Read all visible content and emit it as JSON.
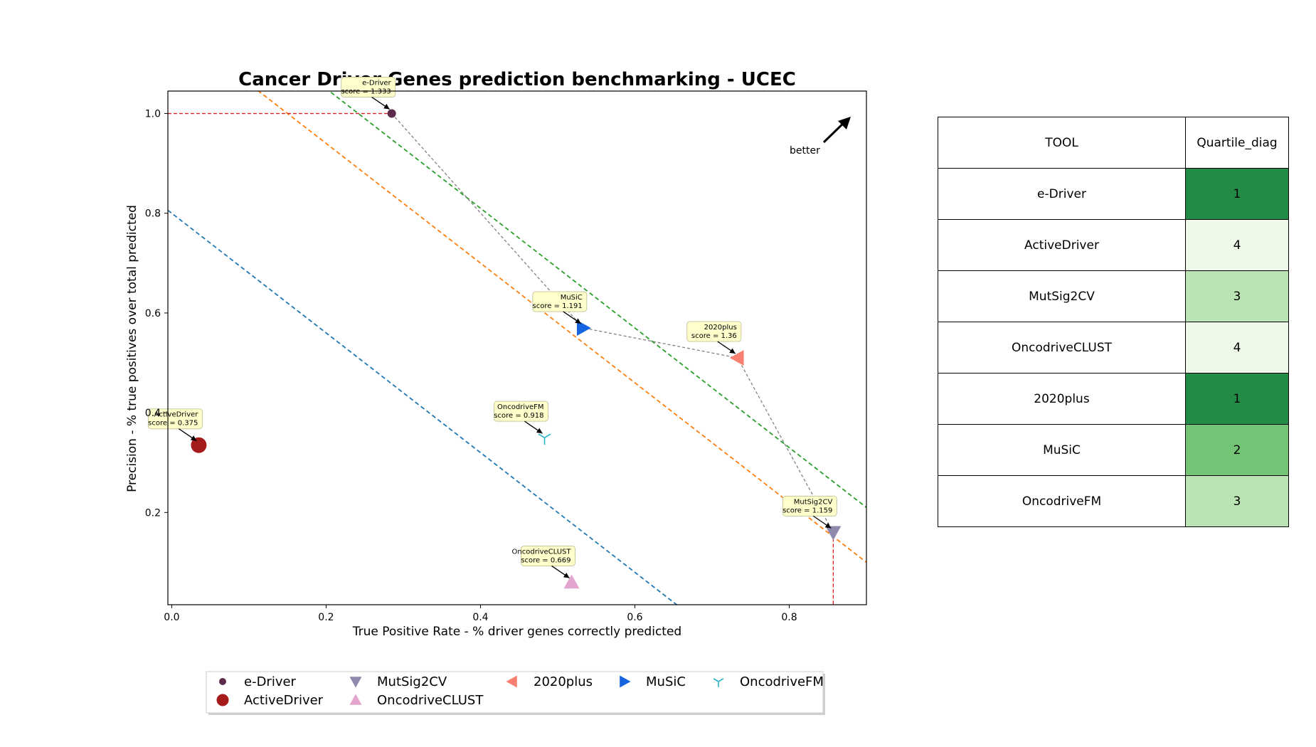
{
  "chart_data": {
    "type": "scatter",
    "title": "Cancer Driver Genes prediction benchmarking - UCEC",
    "xlabel": "True Positive Rate - % driver genes correctly predicted",
    "ylabel": "Precision - % true positives over total predicted",
    "xlim": [
      -0.005,
      0.9
    ],
    "ylim": [
      0.015,
      1.045
    ],
    "xticks": [
      0.0,
      0.2,
      0.4,
      0.6,
      0.8
    ],
    "xtick_labels": [
      "0.0",
      "0.2",
      "0.4",
      "0.6",
      "0.8"
    ],
    "yticks": [
      0.2,
      0.4,
      0.6,
      0.8,
      1.0
    ],
    "ytick_labels": [
      "0.2",
      "0.4",
      "0.6",
      "0.8",
      "1.0"
    ],
    "grid": false,
    "legend_placement": "bottom-center",
    "series": [
      {
        "name": "e-Driver",
        "x": 0.285,
        "y": 1.0,
        "score": "score = 1.333",
        "marker": "circle-small",
        "color": "#5b2a4c",
        "label_shown": "e-Driver"
      },
      {
        "name": "ActiveDriver",
        "x": 0.035,
        "y": 0.335,
        "score": "score = 0.375",
        "marker": "circle-large",
        "color": "#a51a1a",
        "label_shown": "ActiveDriver"
      },
      {
        "name": "MutSig2CV",
        "x": 0.857,
        "y": 0.16,
        "score": "score = 1.159",
        "marker": "triangle-down",
        "color": "#8e8aab",
        "label_shown": "MutSig2CV"
      },
      {
        "name": "OncodriveCLUST",
        "x": 0.518,
        "y": 0.06,
        "score": "score = 0.669",
        "marker": "triangle-up",
        "color": "#e2a5d0",
        "label_shown": "OncodriveCLUST"
      },
      {
        "name": "2020plus",
        "x": 0.733,
        "y": 0.51,
        "score": "score = 1.36",
        "marker": "triangle-left",
        "color": "#f88070",
        "label_shown": "2020plus"
      },
      {
        "name": "MuSiC",
        "x": 0.533,
        "y": 0.57,
        "score": "score = 1.191",
        "marker": "triangle-right",
        "color": "#1664e0",
        "label_shown": "MuSiC"
      },
      {
        "name": "OncodriveFM",
        "x": 0.483,
        "y": 0.35,
        "score": "score = 0.918",
        "marker": "tri-down",
        "color": "#2ab3c8",
        "label_shown": "OncodriveFM"
      }
    ],
    "pareto_frontier": [
      "e-Driver",
      "MuSiC",
      "2020plus",
      "MutSig2CV"
    ],
    "frontier_color": "#808080",
    "best_reference_lines": [
      {
        "axis": "y",
        "value": 1.0,
        "x_to": 0.285,
        "color": "#e02020"
      },
      {
        "axis": "x",
        "value": 0.857,
        "y_to": 0.16,
        "color": "#e02020"
      }
    ],
    "iso_score_lines": [
      {
        "slope": -1.2,
        "intercept": 0.8,
        "color": "#1f77b4"
      },
      {
        "slope": -1.2,
        "intercept": 1.18,
        "color": "#ff7f0e"
      },
      {
        "slope": -1.2,
        "intercept": 1.29,
        "color": "#2ca02c"
      }
    ],
    "annotation": "better"
  },
  "legend": {
    "items": [
      "e-Driver",
      "ActiveDriver",
      "MutSig2CV",
      "OncodriveCLUST",
      "2020plus",
      "MuSiC",
      "OncodriveFM"
    ]
  },
  "table": {
    "headers": [
      "TOOL",
      "Quartile_diag"
    ],
    "rows": [
      {
        "tool": "e-Driver",
        "quartile": "1",
        "color": "#238b45",
        "text_color": "#000000"
      },
      {
        "tool": "ActiveDriver",
        "quartile": "4",
        "color": "#edf8e9",
        "text_color": "#000000"
      },
      {
        "tool": "MutSig2CV",
        "quartile": "3",
        "color": "#bae4b3",
        "text_color": "#000000"
      },
      {
        "tool": "OncodriveCLUST",
        "quartile": "4",
        "color": "#edf8e9",
        "text_color": "#000000"
      },
      {
        "tool": "2020plus",
        "quartile": "1",
        "color": "#238b45",
        "text_color": "#000000"
      },
      {
        "tool": "MuSiC",
        "quartile": "2",
        "color": "#74c476",
        "text_color": "#000000"
      },
      {
        "tool": "OncodriveFM",
        "quartile": "3",
        "color": "#bae4b3",
        "text_color": "#000000"
      }
    ]
  }
}
